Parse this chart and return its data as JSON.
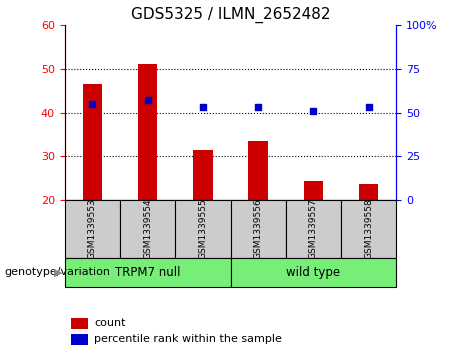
{
  "title": "GDS5325 / ILMN_2652482",
  "samples": [
    "GSM1339553",
    "GSM1339554",
    "GSM1339555",
    "GSM1339556",
    "GSM1339557",
    "GSM1339558"
  ],
  "counts": [
    46.5,
    51.2,
    31.5,
    33.5,
    24.2,
    23.5
  ],
  "percentiles": [
    55,
    57,
    53,
    53,
    51,
    53
  ],
  "bar_bottom": 20,
  "ylim_left": [
    20,
    60
  ],
  "ylim_right": [
    0,
    100
  ],
  "yticks_left": [
    20,
    30,
    40,
    50,
    60
  ],
  "yticks_right": [
    0,
    25,
    50,
    75,
    100
  ],
  "yticklabels_right": [
    "0",
    "25",
    "50",
    "75",
    "100%"
  ],
  "bar_color": "#cc0000",
  "dot_color": "#0000cc",
  "group_color": "#77ee77",
  "sample_box_color": "#cccccc",
  "genotype_label": "genotype/variation",
  "legend_count": "count",
  "legend_percentile": "percentile rank within the sample",
  "group_info": [
    {
      "label": "TRPM7 null",
      "start": 0,
      "end": 3
    },
    {
      "label": "wild type",
      "start": 3,
      "end": 6
    }
  ]
}
